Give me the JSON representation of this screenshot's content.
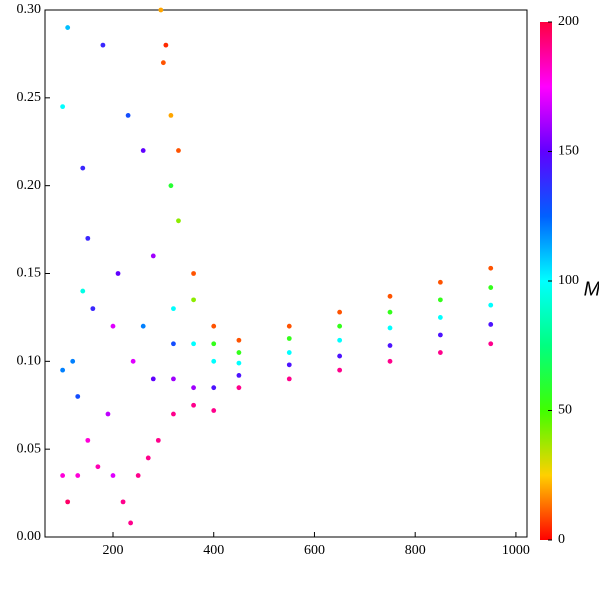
{
  "chart_data": {
    "type": "scatter",
    "x": [
      450,
      450,
      450,
      450,
      450,
      550,
      550,
      550,
      550,
      550,
      650,
      650,
      650,
      650,
      650,
      750,
      750,
      750,
      750,
      750,
      850,
      850,
      850,
      850,
      850,
      950,
      950,
      950,
      950,
      950,
      400,
      400,
      400,
      400,
      400,
      360,
      360,
      360,
      360,
      360,
      330,
      330,
      320,
      320,
      320,
      320,
      305,
      315,
      315,
      295,
      300,
      100,
      110,
      140,
      150,
      180,
      200,
      120,
      160,
      230,
      260,
      280,
      240,
      100,
      130,
      170,
      200,
      220,
      235,
      250,
      270,
      290,
      110,
      150,
      190,
      260,
      140,
      100,
      210,
      130,
      280
    ],
    "values": [
      0.112,
      0.105,
      0.099,
      0.092,
      0.085,
      0.12,
      0.113,
      0.105,
      0.098,
      0.09,
      0.128,
      0.12,
      0.112,
      0.103,
      0.095,
      0.137,
      0.128,
      0.119,
      0.109,
      0.1,
      0.145,
      0.135,
      0.125,
      0.115,
      0.105,
      0.153,
      0.142,
      0.132,
      0.121,
      0.11,
      0.12,
      0.11,
      0.1,
      0.085,
      0.072,
      0.15,
      0.135,
      0.11,
      0.085,
      0.075,
      0.22,
      0.18,
      0.13,
      0.11,
      0.09,
      0.07,
      0.28,
      0.24,
      0.2,
      0.3,
      0.27,
      0.245,
      0.29,
      0.21,
      0.17,
      0.28,
      0.12,
      0.1,
      0.13,
      0.24,
      0.22,
      0.16,
      0.1,
      0.035,
      0.035,
      0.04,
      0.035,
      0.02,
      0.008,
      0.035,
      0.045,
      0.055,
      0.02,
      0.055,
      0.07,
      0.12,
      0.14,
      0.095,
      0.15,
      0.08,
      0.09
    ],
    "color_values": [
      10,
      55,
      100,
      145,
      190,
      10,
      55,
      100,
      145,
      190,
      10,
      55,
      100,
      145,
      190,
      10,
      55,
      100,
      145,
      190,
      10,
      55,
      100,
      145,
      190,
      10,
      55,
      100,
      145,
      190,
      10,
      55,
      100,
      145,
      190,
      10,
      40,
      100,
      160,
      190,
      10,
      40,
      100,
      130,
      160,
      190,
      5,
      20,
      60,
      20,
      10,
      100,
      110,
      140,
      140,
      140,
      170,
      120,
      140,
      130,
      150,
      160,
      170,
      180,
      180,
      185,
      170,
      190,
      190,
      190,
      190,
      190,
      195,
      180,
      165,
      120,
      95,
      120,
      150,
      130,
      150
    ],
    "xlim": [
      65,
      1022
    ],
    "ylim": [
      0,
      0.3
    ],
    "xticks": [
      200,
      400,
      600,
      800,
      1000
    ],
    "yticks": [
      {
        "value": 0,
        "label": "0.00"
      },
      {
        "value": 0.05,
        "label": "0.05"
      },
      {
        "value": 0.1,
        "label": "0.10"
      },
      {
        "value": 0.15,
        "label": "0.15"
      },
      {
        "value": 0.2,
        "label": "0.20"
      },
      {
        "value": 0.25,
        "label": "0.25"
      },
      {
        "value": 0.3,
        "label": "0.30"
      }
    ],
    "colorbar": {
      "label": "M",
      "lim": [
        0,
        200
      ],
      "ticks": [
        0,
        50,
        100,
        150,
        200
      ],
      "colormap": [
        "#ff0000",
        "#ffd000",
        "#40ff00",
        "#00ff80",
        "#00ffff",
        "#0060ff",
        "#6000ff",
        "#ff00ff",
        "#ff0040"
      ]
    }
  }
}
